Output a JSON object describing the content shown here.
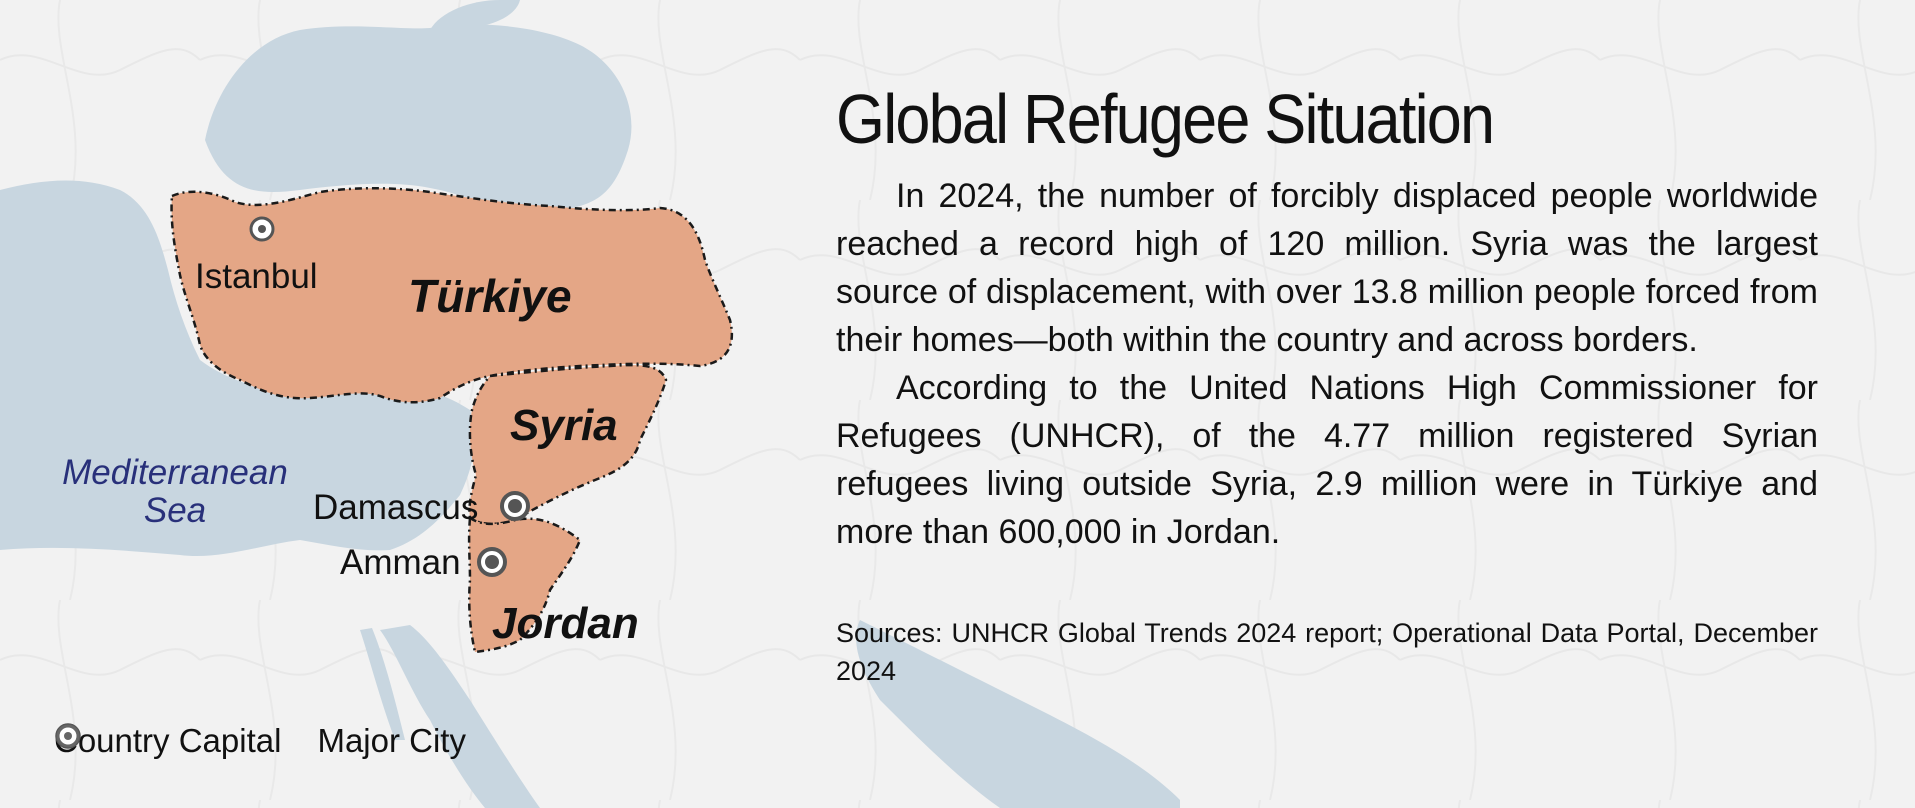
{
  "colors": {
    "background": "#f2f2f2",
    "water": "#c8d6e0",
    "highlight_country": "#e4a686",
    "border": "#1a1a1a",
    "sea_label": "#28307a"
  },
  "map": {
    "sea_label_line1": "Mediterranean",
    "sea_label_line2": "Sea",
    "countries": [
      {
        "name": "Türkiye"
      },
      {
        "name": "Syria"
      },
      {
        "name": "Jordan"
      }
    ],
    "cities": [
      {
        "name": "Istanbul",
        "type": "major-city"
      },
      {
        "name": "Damascus",
        "type": "country-capital"
      },
      {
        "name": "Amman",
        "type": "country-capital"
      }
    ]
  },
  "legend": {
    "items": [
      {
        "label": "Country Capital",
        "icon": "country-capital-icon"
      },
      {
        "label": "Major City",
        "icon": "major-city-icon"
      }
    ]
  },
  "text": {
    "title": "Global Refugee Situation",
    "paragraphs": [
      "In 2024, the number of forcibly displaced people worldwide reached a record high of 120 million. Syria was the largest source of displacement, with over 13.8 million people forced from their homes—both within the country and across borders.",
      "According to the United Nations High Commissioner for Refugees (UNHCR), of the 4.77 million registered Syrian refugees living outside Syria, 2.9 million were in Türkiye and more than 600,000 in Jordan."
    ],
    "sources": "Sources: UNHCR Global Trends 2024 report; Operational Data Portal, December 2024"
  }
}
